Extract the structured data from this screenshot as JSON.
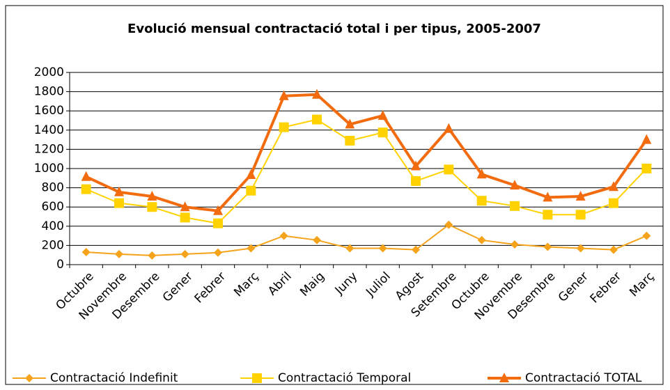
{
  "chart_data": {
    "type": "line",
    "title": "Evolució mensual contractació total i per tipus, 2005-2007",
    "categories": [
      "Octubre",
      "Novembre",
      "Desembre",
      "Gener",
      "Febrer",
      "Març",
      "Abril",
      "Maig",
      "Juny",
      "Juliol",
      "Agost",
      "Setembre",
      "Octubre",
      "Novembre",
      "Desembre",
      "Gener",
      "Febrer",
      "Març"
    ],
    "series": [
      {
        "name": "Contractació Indefinit",
        "color": "#f5a31a",
        "marker": "diamond",
        "values": [
          130,
          110,
          95,
          110,
          125,
          170,
          300,
          255,
          170,
          170,
          155,
          415,
          255,
          210,
          185,
          170,
          155,
          300
        ]
      },
      {
        "name": "Contractació Temporal",
        "color": "#ffd200",
        "marker": "square",
        "values": [
          785,
          640,
          600,
          490,
          430,
          770,
          1430,
          1510,
          1290,
          1375,
          870,
          990,
          665,
          610,
          520,
          520,
          640,
          1000
        ]
      },
      {
        "name": "Contractació TOTAL",
        "color": "#f26b0f",
        "marker": "triangle",
        "values": [
          915,
          755,
          710,
          600,
          560,
          935,
          1755,
          1770,
          1460,
          1550,
          1025,
          1415,
          940,
          825,
          700,
          710,
          810,
          1300
        ]
      }
    ],
    "ylim": [
      0,
      2000
    ],
    "yticks": [
      0,
      200,
      400,
      600,
      800,
      1000,
      1200,
      1400,
      1600,
      1800,
      2000
    ],
    "grid": true,
    "legend": "bottom"
  }
}
